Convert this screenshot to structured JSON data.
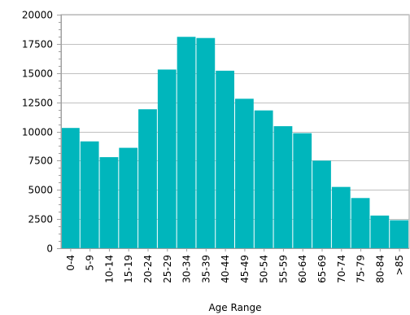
{
  "chart_data": {
    "type": "bar",
    "title": "",
    "xlabel": "Age Range",
    "ylabel": "",
    "categories": [
      "0-4",
      "5-9",
      "10-14",
      "15-19",
      "20-24",
      "25-29",
      "30-34",
      "35-39",
      "40-44",
      "45-49",
      "50-54",
      "55-59",
      "60-64",
      "65-69",
      "70-74",
      "75-79",
      "80-84",
      ">85"
    ],
    "values": [
      10300,
      9150,
      7800,
      8600,
      11900,
      15300,
      18100,
      18000,
      15200,
      12800,
      11800,
      10450,
      9850,
      7500,
      5250,
      4300,
      2800,
      2400
    ],
    "ylim": [
      0,
      20000
    ],
    "yticks": [
      "0",
      "2500",
      "5000",
      "7500",
      "10000",
      "12500",
      "15000",
      "17500",
      "20000"
    ],
    "grid": true,
    "bar_color": "#00b6bc",
    "grid_color": "#c0c0c0",
    "axis_color": "#a0a0a0"
  }
}
